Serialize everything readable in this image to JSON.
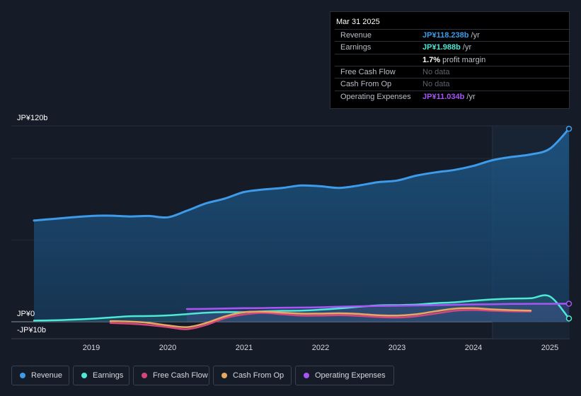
{
  "tooltip": {
    "date": "Mar 31 2025",
    "rows": [
      {
        "label": "Revenue",
        "value": "JP¥118.238b",
        "unit": " /yr",
        "color": "#3d9be9"
      },
      {
        "label": "Earnings",
        "value": "JP¥1.988b",
        "unit": " /yr",
        "color": "#4ee8d6"
      },
      {
        "label": "",
        "value": "1.7%",
        "unit": " profit margin",
        "color": "#ffffff"
      },
      {
        "label": "Free Cash Flow",
        "value": "No data",
        "unit": "",
        "color": "#5d636d"
      },
      {
        "label": "Cash From Op",
        "value": "No data",
        "unit": "",
        "color": "#5d636d"
      },
      {
        "label": "Operating Expenses",
        "value": "JP¥11.034b",
        "unit": " /yr",
        "color": "#a855f7"
      }
    ]
  },
  "legend": [
    {
      "label": "Revenue",
      "color": "#3d9be9"
    },
    {
      "label": "Earnings",
      "color": "#4ee8d6"
    },
    {
      "label": "Free Cash Flow",
      "color": "#d6457d"
    },
    {
      "label": "Cash From Op",
      "color": "#e8a862"
    },
    {
      "label": "Operating Expenses",
      "color": "#a855f7"
    }
  ],
  "chart_data": {
    "type": "area",
    "title": "",
    "xlabel": "",
    "ylabel": "",
    "y_axis_labels": [
      {
        "label": "JP¥120b",
        "value": 120
      },
      {
        "label": "JP¥0",
        "value": 0
      },
      {
        "label": "-JP¥10b",
        "value": -10
      }
    ],
    "ylim": [
      -10,
      120
    ],
    "xlim": [
      2018.25,
      2025.25
    ],
    "x_ticks": [
      {
        "label": "2019",
        "value": 2019
      },
      {
        "label": "2020",
        "value": 2020
      },
      {
        "label": "2021",
        "value": 2021
      },
      {
        "label": "2022",
        "value": 2022
      },
      {
        "label": "2023",
        "value": 2023
      },
      {
        "label": "2024",
        "value": 2024
      },
      {
        "label": "2025",
        "value": 2025
      }
    ],
    "highlight_from": 2024.25,
    "series": [
      {
        "name": "Revenue",
        "color": "#3d9be9",
        "fill": true,
        "points": [
          [
            2018.25,
            62
          ],
          [
            2018.5,
            63
          ],
          [
            2018.75,
            64
          ],
          [
            2019.0,
            64.8
          ],
          [
            2019.25,
            65
          ],
          [
            2019.5,
            64.5
          ],
          [
            2019.75,
            64.8
          ],
          [
            2020.0,
            64
          ],
          [
            2020.25,
            68
          ],
          [
            2020.5,
            72.5
          ],
          [
            2020.75,
            75.5
          ],
          [
            2021.0,
            79.5
          ],
          [
            2021.25,
            81
          ],
          [
            2021.5,
            82
          ],
          [
            2021.75,
            83.5
          ],
          [
            2022.0,
            83
          ],
          [
            2022.25,
            82
          ],
          [
            2022.5,
            83.5
          ],
          [
            2022.75,
            85.5
          ],
          [
            2023.0,
            86.5
          ],
          [
            2023.25,
            89.5
          ],
          [
            2023.5,
            91.5
          ],
          [
            2023.75,
            93
          ],
          [
            2024.0,
            95.5
          ],
          [
            2024.25,
            99
          ],
          [
            2024.5,
            101
          ],
          [
            2024.75,
            102.5
          ],
          [
            2025.0,
            106
          ],
          [
            2025.25,
            118.238
          ]
        ]
      },
      {
        "name": "Earnings",
        "color": "#4ee8d6",
        "fill": true,
        "points": [
          [
            2018.25,
            0.7
          ],
          [
            2018.5,
            0.9
          ],
          [
            2018.75,
            1.3
          ],
          [
            2019.0,
            1.8
          ],
          [
            2019.25,
            2.6
          ],
          [
            2019.5,
            3.4
          ],
          [
            2019.75,
            3.5
          ],
          [
            2020.0,
            3.9
          ],
          [
            2020.25,
            4.7
          ],
          [
            2020.5,
            5.5
          ],
          [
            2020.75,
            5.9
          ],
          [
            2021.0,
            5.9
          ],
          [
            2021.25,
            6.4
          ],
          [
            2021.5,
            6.7
          ],
          [
            2021.75,
            6.8
          ],
          [
            2022.0,
            7.4
          ],
          [
            2022.25,
            8.2
          ],
          [
            2022.5,
            9.2
          ],
          [
            2022.75,
            10.0
          ],
          [
            2023.0,
            10.2
          ],
          [
            2023.25,
            10.5
          ],
          [
            2023.5,
            11.4
          ],
          [
            2023.75,
            11.9
          ],
          [
            2024.0,
            12.9
          ],
          [
            2024.25,
            13.7
          ],
          [
            2024.5,
            14.2
          ],
          [
            2024.75,
            14.4
          ],
          [
            2025.0,
            15.5
          ],
          [
            2025.25,
            1.988
          ]
        ]
      },
      {
        "name": "Free Cash Flow",
        "color": "#d6457d",
        "fill": false,
        "points": [
          [
            2019.25,
            -0.8
          ],
          [
            2019.5,
            -1.2
          ],
          [
            2019.75,
            -2.0
          ],
          [
            2020.0,
            -3.3
          ],
          [
            2020.25,
            -4.6
          ],
          [
            2020.5,
            -2.0
          ],
          [
            2020.75,
            2.2
          ],
          [
            2021.0,
            4.5
          ],
          [
            2021.25,
            5.4
          ],
          [
            2021.5,
            4.6
          ],
          [
            2021.75,
            3.8
          ],
          [
            2022.0,
            3.8
          ],
          [
            2022.25,
            4.0
          ],
          [
            2022.5,
            3.6
          ],
          [
            2022.75,
            2.9
          ],
          [
            2023.0,
            2.6
          ],
          [
            2023.25,
            3.4
          ],
          [
            2023.5,
            5.0
          ],
          [
            2023.75,
            6.7
          ],
          [
            2024.0,
            7.2
          ],
          [
            2024.25,
            6.7
          ],
          [
            2024.5,
            6.4
          ],
          [
            2024.75,
            6.3
          ]
        ]
      },
      {
        "name": "Cash From Op",
        "color": "#e8a862",
        "fill": false,
        "points": [
          [
            2019.25,
            0.4
          ],
          [
            2019.5,
            0.1
          ],
          [
            2019.75,
            -0.7
          ],
          [
            2020.0,
            -2.2
          ],
          [
            2020.25,
            -3.3
          ],
          [
            2020.5,
            -0.8
          ],
          [
            2020.75,
            3.3
          ],
          [
            2021.0,
            5.8
          ],
          [
            2021.25,
            6.2
          ],
          [
            2021.5,
            5.6
          ],
          [
            2021.75,
            5.0
          ],
          [
            2022.0,
            5.0
          ],
          [
            2022.25,
            5.2
          ],
          [
            2022.5,
            4.8
          ],
          [
            2022.75,
            4.0
          ],
          [
            2023.0,
            3.8
          ],
          [
            2023.25,
            4.6
          ],
          [
            2023.5,
            6.4
          ],
          [
            2023.75,
            8.0
          ],
          [
            2024.0,
            8.3
          ],
          [
            2024.25,
            7.6
          ],
          [
            2024.5,
            7.1
          ],
          [
            2024.75,
            6.8
          ]
        ]
      },
      {
        "name": "Operating Expenses",
        "color": "#a855f7",
        "fill": true,
        "points": [
          [
            2020.25,
            7.8
          ],
          [
            2020.5,
            7.9
          ],
          [
            2020.75,
            8.1
          ],
          [
            2021.0,
            8.3
          ],
          [
            2021.25,
            8.4
          ],
          [
            2021.5,
            8.6
          ],
          [
            2021.75,
            8.7
          ],
          [
            2022.0,
            8.9
          ],
          [
            2022.25,
            9.2
          ],
          [
            2022.5,
            9.5
          ],
          [
            2022.75,
            9.7
          ],
          [
            2023.0,
            9.8
          ],
          [
            2023.25,
            10.0
          ],
          [
            2023.5,
            10.2
          ],
          [
            2023.75,
            10.4
          ],
          [
            2024.0,
            10.6
          ],
          [
            2024.25,
            10.7
          ],
          [
            2024.5,
            10.9
          ],
          [
            2024.75,
            11.0
          ],
          [
            2025.0,
            11.02
          ],
          [
            2025.25,
            11.034
          ]
        ]
      }
    ]
  }
}
